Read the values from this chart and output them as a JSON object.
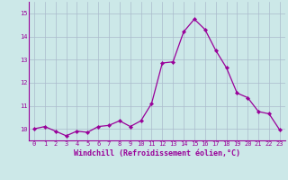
{
  "x": [
    0,
    1,
    2,
    3,
    4,
    5,
    6,
    7,
    8,
    9,
    10,
    11,
    12,
    13,
    14,
    15,
    16,
    17,
    18,
    19,
    20,
    21,
    22,
    23
  ],
  "y": [
    10.0,
    10.1,
    9.9,
    9.7,
    9.9,
    9.85,
    10.1,
    10.15,
    10.35,
    10.1,
    10.35,
    11.1,
    12.85,
    12.9,
    14.2,
    14.75,
    14.3,
    13.4,
    12.65,
    11.55,
    11.35,
    10.75,
    10.65,
    9.95
  ],
  "line_color": "#990099",
  "marker": "D",
  "marker_size": 2.2,
  "bg_color": "#cce8e8",
  "grid_color": "#aabbcc",
  "xlabel": "Windchill (Refroidissement éolien,°C)",
  "ylim": [
    9.5,
    15.5
  ],
  "xlim": [
    -0.5,
    23.5
  ],
  "yticks": [
    10,
    11,
    12,
    13,
    14,
    15
  ],
  "xticks": [
    0,
    1,
    2,
    3,
    4,
    5,
    6,
    7,
    8,
    9,
    10,
    11,
    12,
    13,
    14,
    15,
    16,
    17,
    18,
    19,
    20,
    21,
    22,
    23
  ],
  "tick_fontsize": 5.0,
  "xlabel_fontsize": 6.0,
  "line_width": 0.9
}
